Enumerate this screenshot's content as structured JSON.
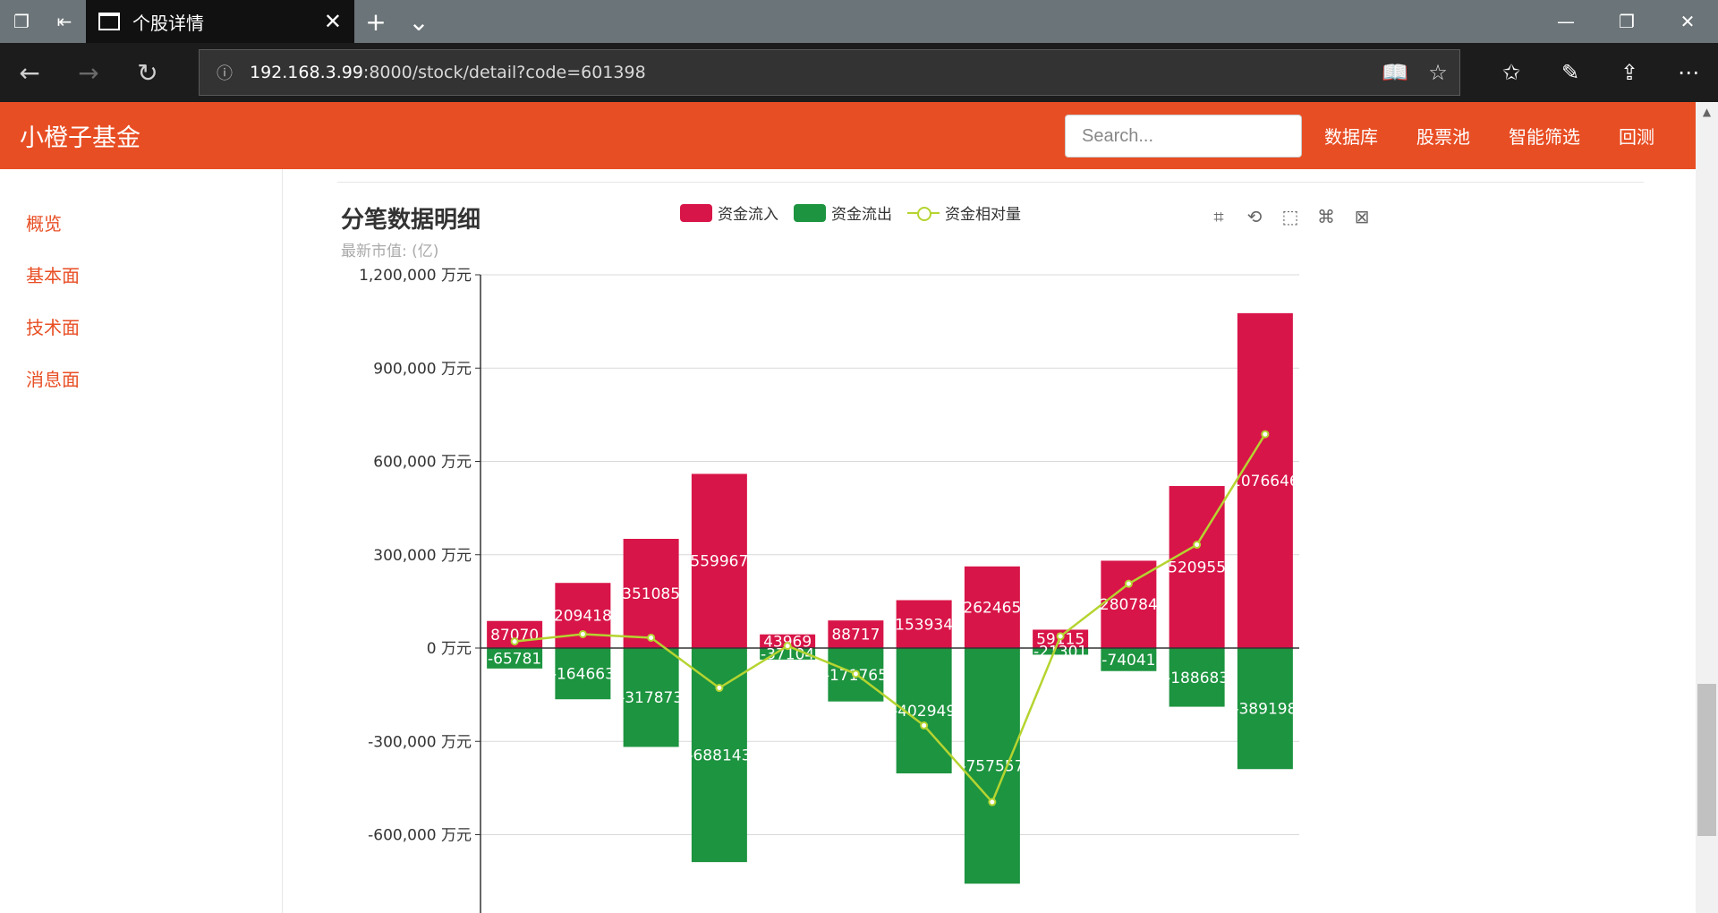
{
  "browser": {
    "tab_title": "个股详情",
    "url_host": "192.168.3.99",
    "url_rest": ":8000/stock/detail?code=601398"
  },
  "app": {
    "brand": "小橙子基金",
    "search_placeholder": "Search...",
    "nav": [
      "数据库",
      "股票池",
      "智能筛选",
      "回测"
    ]
  },
  "sidebar": {
    "items": [
      "概览",
      "基本面",
      "技术面",
      "消息面"
    ]
  },
  "colors": {
    "accent": "#e84e24",
    "inflow": "#d81548",
    "outflow": "#1d9440",
    "relative": "#b5d430"
  },
  "icons": {
    "toolbox": [
      "zoom-icon",
      "zoom-reset-icon",
      "rect-select-icon",
      "lasso-select-icon",
      "clear-select-icon"
    ]
  },
  "chart_data": {
    "type": "bar",
    "title": "分笔数据明细",
    "subtitle": "最新市值: (亿)",
    "legend": [
      "资金流入",
      "资金流出",
      "资金相对量"
    ],
    "legend_position": "top-center",
    "y_unit": "万元",
    "ylim": [
      -900000,
      1200000
    ],
    "y_ticks": [
      "1,200,000 万元",
      "900,000 万元",
      "600,000 万元",
      "300,000 万元",
      "0 万元",
      "-300,000 万元",
      "-600,000 万元"
    ],
    "grid": true,
    "series": [
      {
        "name": "资金流入",
        "type": "bar",
        "values": [
          87070,
          209418,
          351085,
          559967,
          43969,
          88717,
          153934,
          262465,
          59115,
          280784,
          520955,
          1076646
        ]
      },
      {
        "name": "资金流出",
        "type": "bar",
        "values": [
          -65781,
          -164663,
          -317873,
          -688143,
          -37104,
          -171765,
          -402949,
          -757557,
          -21301,
          -74041,
          -188683,
          -389198
        ]
      },
      {
        "name": "资金相对量",
        "type": "line",
        "values": [
          21289,
          44755,
          33212,
          -128176,
          6865,
          -83048,
          -249015,
          -495092,
          37814,
          206743,
          332272,
          687448
        ]
      }
    ]
  }
}
